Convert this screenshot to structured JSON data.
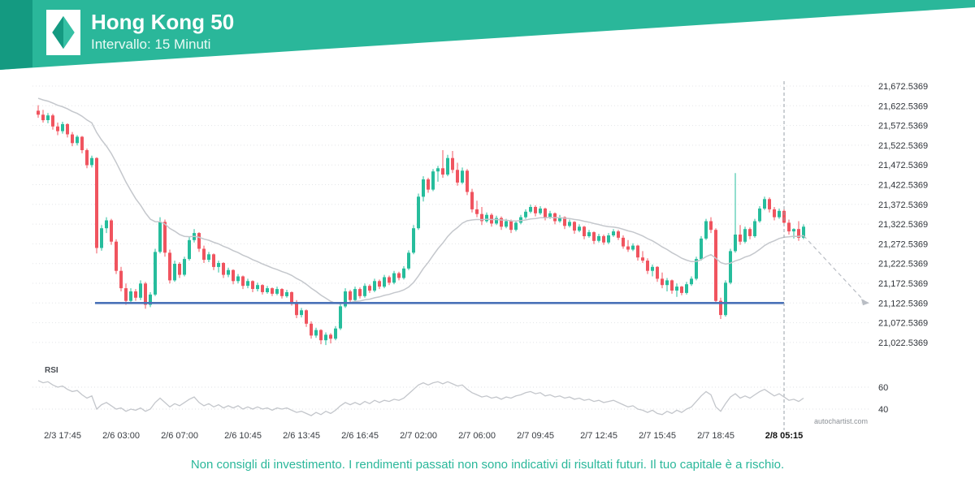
{
  "header": {
    "title": "Hong Kong 50",
    "subtitle": "Intervallo: 15 Minuti",
    "brand_teal": "#2ab79a",
    "brand_teal_dark": "#149a81"
  },
  "footer": {
    "disclaimer": "Non consigli di investimento. I rendimenti passati non sono indicativi di risultati futuri. Il tuo capitale è a rischio.",
    "watermark": "autochartist.com"
  },
  "chart_data": {
    "type": "candlestick",
    "title": "Hong Kong 50",
    "interval": "15 Minuti",
    "colors": {
      "up": "#26bd9c",
      "down": "#f0545f"
    },
    "price_axis": {
      "labels": [
        "21,672.5369",
        "21,622.5369",
        "21,572.5369",
        "21,522.5369",
        "21,472.5369",
        "21,422.5369",
        "21,372.5369",
        "21,322.5369",
        "21,272.5369",
        "21,222.5369",
        "21,172.5369",
        "21,122.5369",
        "21,072.5369",
        "21,022.5369"
      ],
      "values": [
        21672.5369,
        21622.5369,
        21572.5369,
        21522.5369,
        21472.5369,
        21422.5369,
        21372.5369,
        21322.5369,
        21272.5369,
        21222.5369,
        21172.5369,
        21122.5369,
        21072.5369,
        21022.5369
      ],
      "max": 21672.5369,
      "min": 21022.5369,
      "step": 50
    },
    "time_axis": {
      "labels": [
        "2/3 17:45",
        "2/6 03:00",
        "2/6 07:00",
        "2/6 10:45",
        "2/6 13:45",
        "2/6 16:45",
        "2/7 02:00",
        "2/7 06:00",
        "2/7 09:45",
        "2/7 12:45",
        "2/7 15:45",
        "2/7 18:45",
        "2/8 05:15"
      ],
      "tick_indices": [
        5,
        17,
        29,
        42,
        54,
        66,
        78,
        90,
        102,
        115,
        127,
        139,
        153
      ],
      "bold_label": "2/8 05:15"
    },
    "support_line": {
      "price": 21122.5369,
      "color": "#4a72b8",
      "from_index": 12,
      "to_index": 153
    },
    "vertical_line_index": 153,
    "moving_average": {
      "period": 25,
      "seed": 21645,
      "color": "#c4c7cc"
    },
    "projection": {
      "target_price": 21122.5369,
      "color": "#b9bdc4",
      "style": "dashed"
    },
    "candles": [
      [
        21610,
        21624,
        21592,
        21600
      ],
      [
        21600,
        21612,
        21580,
        21586
      ],
      [
        21586,
        21604,
        21578,
        21598
      ],
      [
        21598,
        21602,
        21562,
        21570
      ],
      [
        21570,
        21580,
        21548,
        21558
      ],
      [
        21558,
        21582,
        21552,
        21576
      ],
      [
        21576,
        21578,
        21542,
        21550
      ],
      [
        21550,
        21556,
        21520,
        21528
      ],
      [
        21528,
        21548,
        21522,
        21544
      ],
      [
        21544,
        21546,
        21502,
        21510
      ],
      [
        21510,
        21514,
        21464,
        21472
      ],
      [
        21472,
        21496,
        21466,
        21490
      ],
      [
        21490,
        21492,
        21248,
        21262
      ],
      [
        21262,
        21320,
        21255,
        21312
      ],
      [
        21312,
        21340,
        21300,
        21332
      ],
      [
        21332,
        21336,
        21270,
        21278
      ],
      [
        21278,
        21284,
        21196,
        21204
      ],
      [
        21204,
        21214,
        21152,
        21160
      ],
      [
        21160,
        21172,
        21118,
        21128
      ],
      [
        21128,
        21160,
        21120,
        21152
      ],
      [
        21152,
        21158,
        21128,
        21136
      ],
      [
        21136,
        21180,
        21130,
        21172
      ],
      [
        21172,
        21176,
        21108,
        21118
      ],
      [
        21118,
        21150,
        21112,
        21144
      ],
      [
        21144,
        21260,
        21140,
        21252
      ],
      [
        21252,
        21340,
        21248,
        21328
      ],
      [
        21328,
        21334,
        21240,
        21250
      ],
      [
        21250,
        21258,
        21172,
        21180
      ],
      [
        21180,
        21230,
        21176,
        21222
      ],
      [
        21222,
        21226,
        21186,
        21194
      ],
      [
        21194,
        21240,
        21190,
        21234
      ],
      [
        21234,
        21290,
        21230,
        21282
      ],
      [
        21282,
        21310,
        21276,
        21300
      ],
      [
        21300,
        21302,
        21252,
        21260
      ],
      [
        21260,
        21268,
        21224,
        21232
      ],
      [
        21232,
        21252,
        21226,
        21246
      ],
      [
        21246,
        21248,
        21206,
        21214
      ],
      [
        21214,
        21230,
        21200,
        21224
      ],
      [
        21224,
        21226,
        21186,
        21194
      ],
      [
        21194,
        21212,
        21188,
        21206
      ],
      [
        21206,
        21208,
        21170,
        21178
      ],
      [
        21178,
        21196,
        21172,
        21190
      ],
      [
        21190,
        21192,
        21158,
        21166
      ],
      [
        21166,
        21184,
        21160,
        21178
      ],
      [
        21178,
        21180,
        21150,
        21158
      ],
      [
        21158,
        21174,
        21152,
        21168
      ],
      [
        21168,
        21170,
        21144,
        21150
      ],
      [
        21150,
        21166,
        21146,
        21160
      ],
      [
        21160,
        21162,
        21140,
        21146
      ],
      [
        21146,
        21164,
        21142,
        21158
      ],
      [
        21158,
        21160,
        21134,
        21140
      ],
      [
        21140,
        21156,
        21136,
        21150
      ],
      [
        21150,
        21152,
        21116,
        21124
      ],
      [
        21124,
        21130,
        21084,
        21092
      ],
      [
        21092,
        21110,
        21086,
        21104
      ],
      [
        21104,
        21106,
        21062,
        21070
      ],
      [
        21070,
        21076,
        21032,
        21040
      ],
      [
        21040,
        21060,
        21034,
        21054
      ],
      [
        21054,
        21056,
        21018,
        21028
      ],
      [
        21028,
        21048,
        21016,
        21042
      ],
      [
        21042,
        21046,
        21020,
        21032
      ],
      [
        21032,
        21064,
        21028,
        21058
      ],
      [
        21058,
        21120,
        21054,
        21114
      ],
      [
        21114,
        21160,
        21110,
        21152
      ],
      [
        21152,
        21156,
        21122,
        21130
      ],
      [
        21130,
        21164,
        21126,
        21158
      ],
      [
        21158,
        21162,
        21134,
        21140
      ],
      [
        21140,
        21172,
        21136,
        21166
      ],
      [
        21166,
        21170,
        21148,
        21154
      ],
      [
        21154,
        21184,
        21150,
        21178
      ],
      [
        21178,
        21182,
        21158,
        21164
      ],
      [
        21164,
        21194,
        21160,
        21188
      ],
      [
        21188,
        21192,
        21168,
        21174
      ],
      [
        21174,
        21204,
        21170,
        21198
      ],
      [
        21198,
        21202,
        21180,
        21186
      ],
      [
        21186,
        21216,
        21182,
        21210
      ],
      [
        21210,
        21256,
        21206,
        21250
      ],
      [
        21250,
        21320,
        21246,
        21312
      ],
      [
        21312,
        21400,
        21308,
        21392
      ],
      [
        21392,
        21444,
        21380,
        21436
      ],
      [
        21436,
        21440,
        21402,
        21410
      ],
      [
        21410,
        21462,
        21406,
        21456
      ],
      [
        21456,
        21470,
        21430,
        21464
      ],
      [
        21464,
        21510,
        21440,
        21448
      ],
      [
        21448,
        21498,
        21444,
        21490
      ],
      [
        21490,
        21508,
        21452,
        21460
      ],
      [
        21460,
        21478,
        21420,
        21428
      ],
      [
        21428,
        21466,
        21424,
        21458
      ],
      [
        21458,
        21462,
        21396,
        21404
      ],
      [
        21404,
        21412,
        21352,
        21360
      ],
      [
        21360,
        21382,
        21340,
        21348
      ],
      [
        21348,
        21366,
        21320,
        21330
      ],
      [
        21330,
        21352,
        21326,
        21346
      ],
      [
        21346,
        21350,
        21316,
        21324
      ],
      [
        21324,
        21344,
        21320,
        21338
      ],
      [
        21338,
        21342,
        21308,
        21316
      ],
      [
        21316,
        21336,
        21312,
        21330
      ],
      [
        21330,
        21334,
        21300,
        21308
      ],
      [
        21308,
        21332,
        21304,
        21326
      ],
      [
        21326,
        21346,
        21322,
        21340
      ],
      [
        21340,
        21360,
        21336,
        21354
      ],
      [
        21354,
        21372,
        21350,
        21366
      ],
      [
        21366,
        21370,
        21342,
        21350
      ],
      [
        21350,
        21368,
        21346,
        21362
      ],
      [
        21362,
        21364,
        21332,
        21340
      ],
      [
        21340,
        21356,
        21336,
        21350
      ],
      [
        21350,
        21352,
        21322,
        21330
      ],
      [
        21330,
        21346,
        21326,
        21340
      ],
      [
        21340,
        21342,
        21310,
        21318
      ],
      [
        21318,
        21334,
        21314,
        21328
      ],
      [
        21328,
        21330,
        21298,
        21306
      ],
      [
        21306,
        21322,
        21302,
        21316
      ],
      [
        21316,
        21318,
        21284,
        21292
      ],
      [
        21292,
        21308,
        21288,
        21302
      ],
      [
        21302,
        21304,
        21272,
        21280
      ],
      [
        21280,
        21298,
        21276,
        21292
      ],
      [
        21292,
        21296,
        21270,
        21276
      ],
      [
        21276,
        21300,
        21272,
        21294
      ],
      [
        21294,
        21310,
        21290,
        21304
      ],
      [
        21304,
        21308,
        21282,
        21288
      ],
      [
        21288,
        21294,
        21260,
        21266
      ],
      [
        21266,
        21282,
        21252,
        21258
      ],
      [
        21258,
        21274,
        21254,
        21268
      ],
      [
        21268,
        21270,
        21230,
        21238
      ],
      [
        21238,
        21254,
        21224,
        21230
      ],
      [
        21230,
        21236,
        21196,
        21204
      ],
      [
        21204,
        21220,
        21190,
        21214
      ],
      [
        21214,
        21216,
        21176,
        21184
      ],
      [
        21184,
        21200,
        21160,
        21168
      ],
      [
        21168,
        21186,
        21152,
        21180
      ],
      [
        21180,
        21182,
        21146,
        21154
      ],
      [
        21154,
        21172,
        21138,
        21164
      ],
      [
        21164,
        21166,
        21142,
        21148
      ],
      [
        21148,
        21176,
        21144,
        21170
      ],
      [
        21170,
        21190,
        21166,
        21184
      ],
      [
        21184,
        21240,
        21180,
        21234
      ],
      [
        21234,
        21292,
        21230,
        21286
      ],
      [
        21286,
        21336,
        21282,
        21330
      ],
      [
        21330,
        21340,
        21300,
        21308
      ],
      [
        21308,
        21312,
        21120,
        21128
      ],
      [
        21128,
        21136,
        21082,
        21092
      ],
      [
        21092,
        21180,
        21088,
        21174
      ],
      [
        21174,
        21260,
        21170,
        21254
      ],
      [
        21254,
        21452,
        21250,
        21296
      ],
      [
        21296,
        21320,
        21270,
        21278
      ],
      [
        21278,
        21316,
        21274,
        21310
      ],
      [
        21310,
        21314,
        21284,
        21292
      ],
      [
        21292,
        21336,
        21288,
        21330
      ],
      [
        21330,
        21368,
        21326,
        21362
      ],
      [
        21362,
        21392,
        21358,
        21386
      ],
      [
        21386,
        21390,
        21352,
        21360
      ],
      [
        21360,
        21366,
        21332,
        21340
      ],
      [
        21340,
        21362,
        21336,
        21356
      ],
      [
        21356,
        21360,
        21318,
        21326
      ],
      [
        21326,
        21334,
        21296,
        21304
      ],
      [
        21304,
        21312,
        21286,
        21310
      ],
      [
        21310,
        21330,
        21280,
        21288
      ],
      [
        21288,
        21322,
        21284,
        21316
      ]
    ],
    "rsi": {
      "label": "RSI",
      "axis_labels": [
        "60",
        "40"
      ],
      "axis_values": [
        60,
        40
      ],
      "values": [
        66,
        64,
        65,
        62,
        60,
        61,
        58,
        56,
        57,
        53,
        50,
        52,
        40,
        44,
        46,
        43,
        40,
        41,
        38,
        40,
        39,
        41,
        38,
        40,
        46,
        50,
        46,
        42,
        45,
        43,
        46,
        49,
        51,
        46,
        43,
        45,
        42,
        44,
        41,
        43,
        41,
        43,
        40,
        42,
        40,
        42,
        40,
        41,
        39,
        41,
        40,
        41,
        39,
        37,
        38,
        36,
        34,
        37,
        35,
        38,
        36,
        39,
        43,
        46,
        44,
        46,
        44,
        47,
        45,
        48,
        46,
        48,
        47,
        49,
        48,
        50,
        54,
        58,
        62,
        64,
        62,
        64,
        65,
        63,
        65,
        63,
        61,
        62,
        58,
        55,
        53,
        51,
        52,
        50,
        51,
        49,
        51,
        50,
        52,
        53,
        55,
        56,
        54,
        55,
        52,
        53,
        51,
        52,
        50,
        51,
        49,
        50,
        48,
        49,
        47,
        48,
        46,
        47,
        48,
        46,
        44,
        42,
        43,
        40,
        39,
        37,
        39,
        36,
        35,
        38,
        36,
        39,
        37,
        40,
        42,
        47,
        52,
        56,
        53,
        42,
        38,
        45,
        51,
        54,
        50,
        52,
        50,
        53,
        56,
        58,
        55,
        52,
        54,
        51,
        48,
        49,
        47,
        50
      ]
    }
  }
}
